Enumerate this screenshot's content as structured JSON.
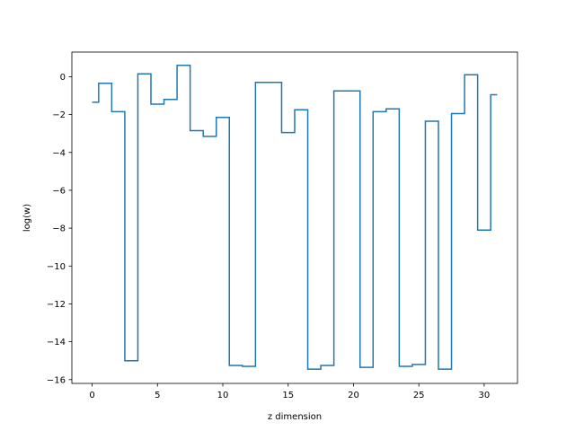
{
  "chart_data": {
    "type": "line",
    "drawstyle": "steps-mid",
    "title": "",
    "xlabel": "z dimension",
    "ylabel": "log(w)",
    "xlim": [
      -1.55,
      32.55
    ],
    "ylim": [
      -16.2,
      1.3
    ],
    "xticks": [
      0,
      5,
      10,
      15,
      20,
      25,
      30
    ],
    "yticks": [
      0,
      -2,
      -4,
      -6,
      -8,
      -10,
      -12,
      -14,
      -16
    ],
    "grid": false,
    "legend": "none",
    "color": "#1f77b4",
    "series": [
      {
        "x": [
          0,
          1,
          2,
          3,
          4,
          5,
          6,
          7,
          8,
          9,
          10,
          11,
          12,
          13,
          14,
          15,
          16,
          17,
          18,
          19,
          20,
          21,
          22,
          23,
          24,
          25,
          26,
          27,
          28,
          29,
          30,
          31
        ],
        "values": [
          -1.35,
          -0.35,
          -1.85,
          -15.0,
          0.15,
          -1.45,
          -1.2,
          0.6,
          -2.85,
          -3.15,
          -2.15,
          -15.25,
          -15.3,
          -0.3,
          -0.3,
          -2.95,
          -1.75,
          -15.45,
          -15.25,
          -0.75,
          -0.75,
          -15.35,
          -1.85,
          -1.7,
          -15.3,
          -15.2,
          -2.35,
          -15.45,
          -1.95,
          0.1,
          -8.1,
          -0.95
        ]
      }
    ]
  }
}
